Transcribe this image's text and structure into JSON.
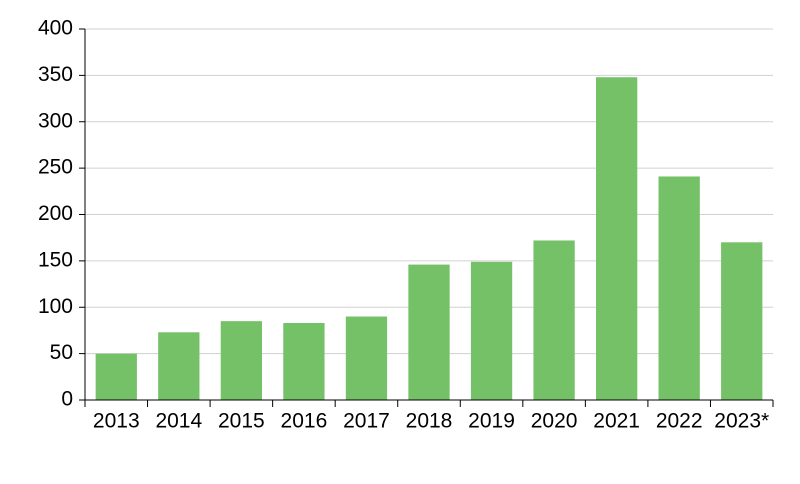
{
  "chart_data": {
    "type": "bar",
    "categories": [
      "2013",
      "2014",
      "2015",
      "2016",
      "2017",
      "2018",
      "2019",
      "2020",
      "2021",
      "2022",
      "2023*"
    ],
    "values": [
      50,
      73,
      85,
      83,
      90,
      146,
      149,
      172,
      348,
      241,
      170
    ],
    "color": "#74c167",
    "ylim": [
      0,
      400
    ],
    "yticks": [
      0,
      50,
      100,
      150,
      200,
      250,
      300,
      350,
      400
    ],
    "grid": true
  }
}
